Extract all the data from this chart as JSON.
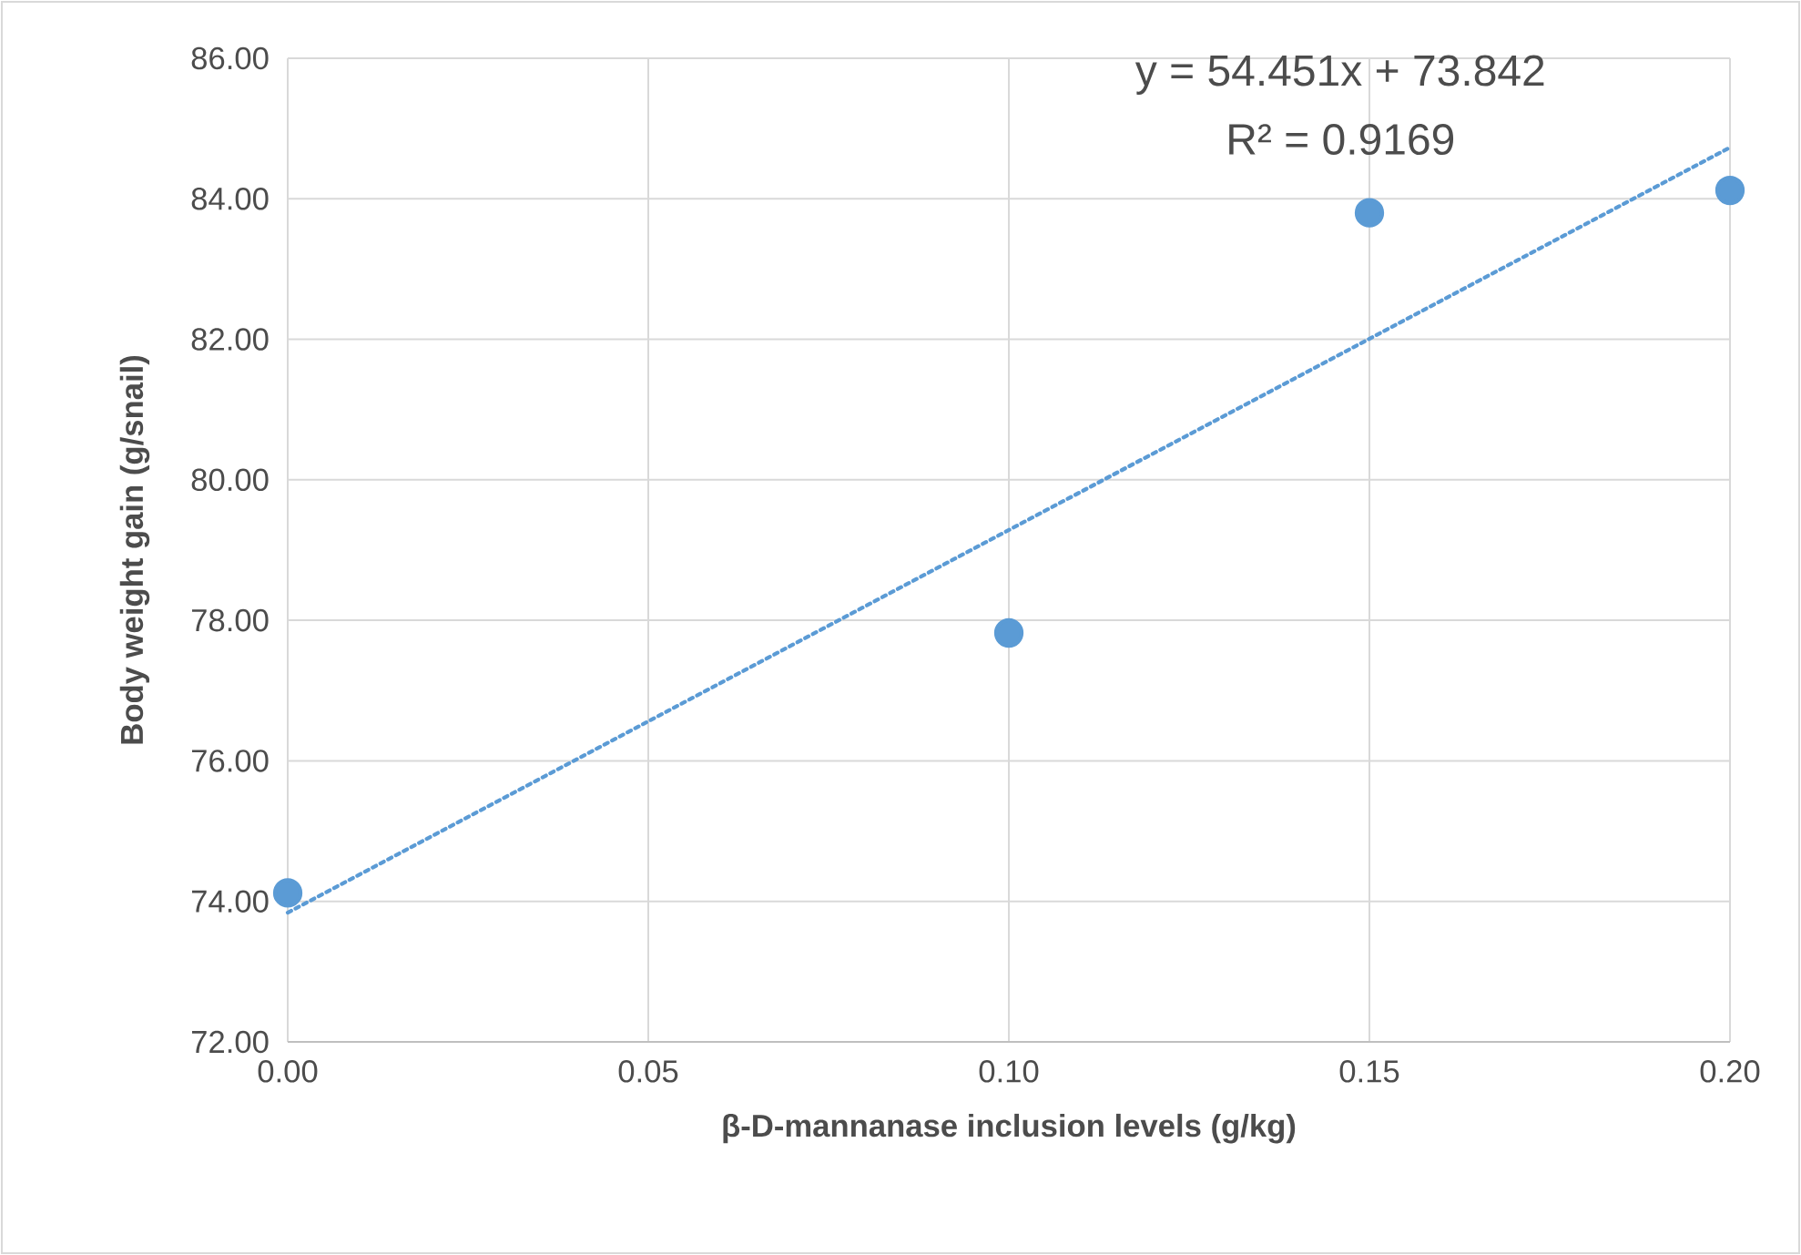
{
  "chart_data": {
    "type": "scatter",
    "xlabel": "β-D-mannanase inclusion levels (g/kg)",
    "ylabel": "Body weight gain (g/snail)",
    "series": [
      {
        "color": "#5b9bd5",
        "marker": "circle",
        "x": [
          0.0,
          0.1,
          0.15,
          0.2
        ],
        "values": [
          74.12,
          77.82,
          83.8,
          84.12
        ]
      },
      {
        "type": "line",
        "color": "#5b9bd5",
        "marker": "none",
        "line_style": "dotted",
        "x": [
          0.0,
          0.2
        ],
        "values": [
          73.84,
          84.73
        ]
      }
    ],
    "annotations": [
      "y = 54.451x + 73.842",
      "R² = 0.9169"
    ],
    "xlim": [
      0,
      0.2
    ],
    "xticks": [
      {
        "value": 0,
        "label": "0.00"
      },
      {
        "value": 0.05,
        "label": "0.05"
      },
      {
        "value": 0.1,
        "label": "0.10"
      },
      {
        "value": 0.15,
        "label": "0.15"
      },
      {
        "value": 0.2,
        "label": "0.20"
      }
    ],
    "ylim": [
      72,
      86
    ],
    "yticks": [
      {
        "value": 72,
        "label": "72.00"
      },
      {
        "value": 74,
        "label": "74.00"
      },
      {
        "value": 76,
        "label": "76.00"
      },
      {
        "value": 78,
        "label": "78.00"
      },
      {
        "value": 80,
        "label": "80.00"
      },
      {
        "value": 82,
        "label": "82.00"
      },
      {
        "value": 84,
        "label": "84.00"
      },
      {
        "value": 86,
        "label": "86.00"
      }
    ],
    "grid": true
  }
}
